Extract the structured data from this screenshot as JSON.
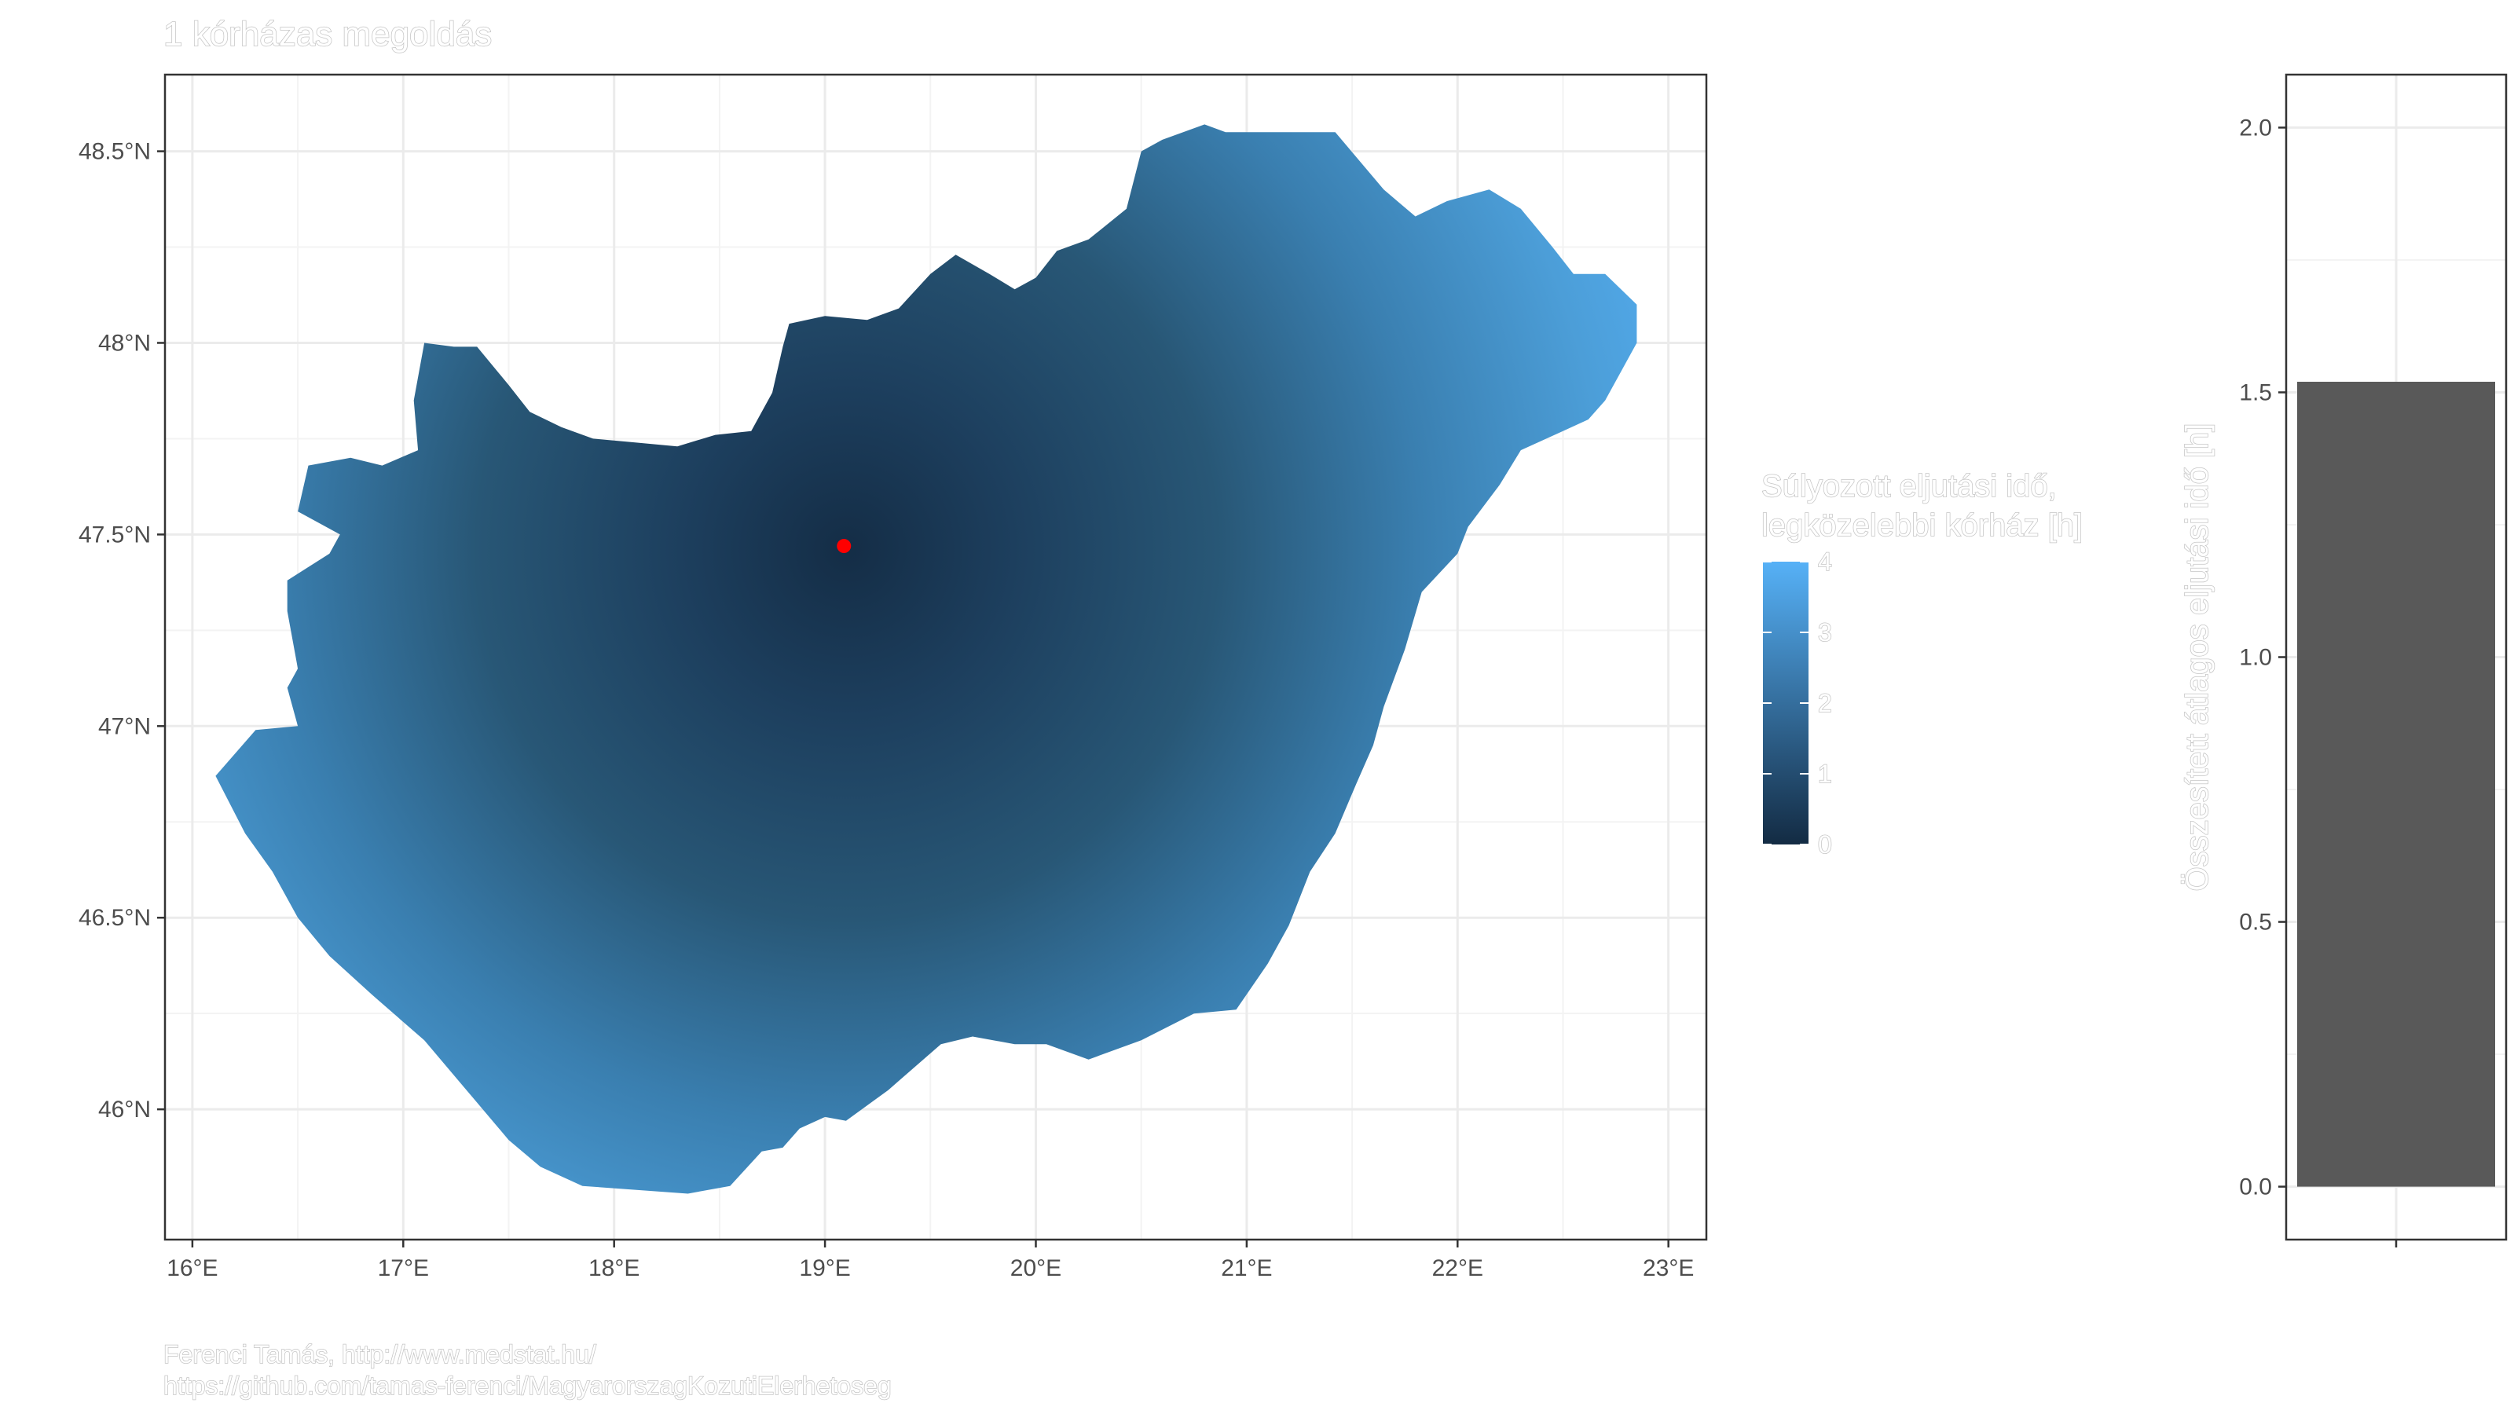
{
  "title": "1 kórházas megoldás",
  "caption": [
    "Ferenci Tamás, http://www.medstat.hu/",
    "https://github.com/tamas-ferenci/MagyarorszagKozutiElerhetoseg"
  ],
  "colors": {
    "fill_low": "#132b43",
    "fill_high": "#56b1f7",
    "hospital_point": "#ff0000",
    "bar": "#595959",
    "grid": "#ebebeb",
    "panel_border": "#333333"
  },
  "chart_data": [
    {
      "type": "heatmap",
      "description_kind": "choropleth map",
      "xlabel": "",
      "ylabel": "",
      "xlim": [
        15.87,
        23.18
      ],
      "ylim": [
        45.66,
        48.7
      ],
      "x_breaks": [
        16,
        17,
        18,
        19,
        20,
        21,
        22,
        23
      ],
      "x_tick_labels": [
        "16°E",
        "17°E",
        "18°E",
        "19°E",
        "20°E",
        "21°E",
        "22°E",
        "23°E"
      ],
      "y_breaks": [
        46,
        46.5,
        47,
        47.5,
        48,
        48.5
      ],
      "y_tick_labels": [
        "46°N",
        "46.5°N",
        "47°N",
        "47.5°N",
        "48°N",
        "48.5°N"
      ],
      "hospital": {
        "lon": 19.09,
        "lat": 47.47
      },
      "legend": {
        "title_lines": [
          "Súlyozott eljutási idő,",
          "legközelebbi kórház [h]"
        ],
        "range": [
          0,
          4
        ],
        "breaks": [
          0,
          1,
          2,
          3,
          4
        ],
        "labels": [
          "0",
          "1",
          "2",
          "3",
          "4"
        ],
        "position": "right"
      },
      "boundary_lonlat": [
        [
          16.11,
          46.87
        ],
        [
          16.25,
          46.72
        ],
        [
          16.38,
          46.62
        ],
        [
          16.5,
          46.5
        ],
        [
          16.65,
          46.4
        ],
        [
          16.85,
          46.3
        ],
        [
          17.1,
          46.18
        ],
        [
          17.3,
          46.05
        ],
        [
          17.5,
          45.92
        ],
        [
          17.65,
          45.85
        ],
        [
          17.85,
          45.8
        ],
        [
          18.1,
          45.79
        ],
        [
          18.35,
          45.78
        ],
        [
          18.55,
          45.8
        ],
        [
          18.7,
          45.89
        ],
        [
          18.8,
          45.9
        ],
        [
          18.88,
          45.95
        ],
        [
          19.0,
          45.98
        ],
        [
          19.1,
          45.97
        ],
        [
          19.3,
          46.05
        ],
        [
          19.55,
          46.17
        ],
        [
          19.7,
          46.19
        ],
        [
          19.9,
          46.17
        ],
        [
          20.05,
          46.17
        ],
        [
          20.25,
          46.13
        ],
        [
          20.5,
          46.18
        ],
        [
          20.75,
          46.25
        ],
        [
          20.95,
          46.26
        ],
        [
          21.1,
          46.38
        ],
        [
          21.2,
          46.48
        ],
        [
          21.3,
          46.62
        ],
        [
          21.42,
          46.72
        ],
        [
          21.52,
          46.85
        ],
        [
          21.6,
          46.95
        ],
        [
          21.65,
          47.05
        ],
        [
          21.75,
          47.2
        ],
        [
          21.83,
          47.35
        ],
        [
          22.0,
          47.45
        ],
        [
          22.05,
          47.52
        ],
        [
          22.2,
          47.63
        ],
        [
          22.3,
          47.72
        ],
        [
          22.5,
          47.77
        ],
        [
          22.62,
          47.8
        ],
        [
          22.7,
          47.85
        ],
        [
          22.85,
          48.0
        ],
        [
          22.85,
          48.1
        ],
        [
          22.7,
          48.18
        ],
        [
          22.55,
          48.18
        ],
        [
          22.45,
          48.25
        ],
        [
          22.3,
          48.35
        ],
        [
          22.15,
          48.4
        ],
        [
          21.95,
          48.37
        ],
        [
          21.8,
          48.33
        ],
        [
          21.65,
          48.4
        ],
        [
          21.42,
          48.55
        ],
        [
          21.2,
          48.55
        ],
        [
          20.9,
          48.55
        ],
        [
          20.8,
          48.57
        ],
        [
          20.6,
          48.53
        ],
        [
          20.5,
          48.5
        ],
        [
          20.43,
          48.35
        ],
        [
          20.25,
          48.27
        ],
        [
          20.1,
          48.24
        ],
        [
          20.0,
          48.17
        ],
        [
          19.9,
          48.14
        ],
        [
          19.78,
          48.18
        ],
        [
          19.62,
          48.23
        ],
        [
          19.5,
          48.18
        ],
        [
          19.35,
          48.09
        ],
        [
          19.2,
          48.06
        ],
        [
          19.0,
          48.07
        ],
        [
          18.83,
          48.05
        ],
        [
          18.8,
          47.99
        ],
        [
          18.75,
          47.87
        ],
        [
          18.65,
          47.77
        ],
        [
          18.48,
          47.76
        ],
        [
          18.3,
          47.73
        ],
        [
          18.1,
          47.74
        ],
        [
          17.9,
          47.75
        ],
        [
          17.75,
          47.78
        ],
        [
          17.6,
          47.82
        ],
        [
          17.5,
          47.89
        ],
        [
          17.35,
          47.99
        ],
        [
          17.24,
          47.99
        ],
        [
          17.1,
          48.0
        ],
        [
          17.05,
          47.85
        ],
        [
          17.07,
          47.72
        ],
        [
          16.9,
          47.68
        ],
        [
          16.75,
          47.7
        ],
        [
          16.55,
          47.68
        ],
        [
          16.5,
          47.56
        ],
        [
          16.7,
          47.5
        ],
        [
          16.65,
          47.45
        ],
        [
          16.45,
          47.38
        ],
        [
          16.45,
          47.3
        ],
        [
          16.5,
          47.15
        ],
        [
          16.45,
          47.1
        ],
        [
          16.5,
          47.0
        ],
        [
          16.3,
          46.99
        ],
        [
          16.11,
          46.87
        ]
      ]
    },
    {
      "type": "bar",
      "categories": [
        ""
      ],
      "values": [
        1.52
      ],
      "ylabel": "Összesített átlagos eljutási idő [h]",
      "ylim": [
        -0.1,
        2.1
      ],
      "y_breaks": [
        0.0,
        0.5,
        1.0,
        1.5,
        2.0
      ],
      "y_tick_labels": [
        "0.0",
        "0.5",
        "1.0",
        "1.5",
        "2.0"
      ]
    }
  ]
}
